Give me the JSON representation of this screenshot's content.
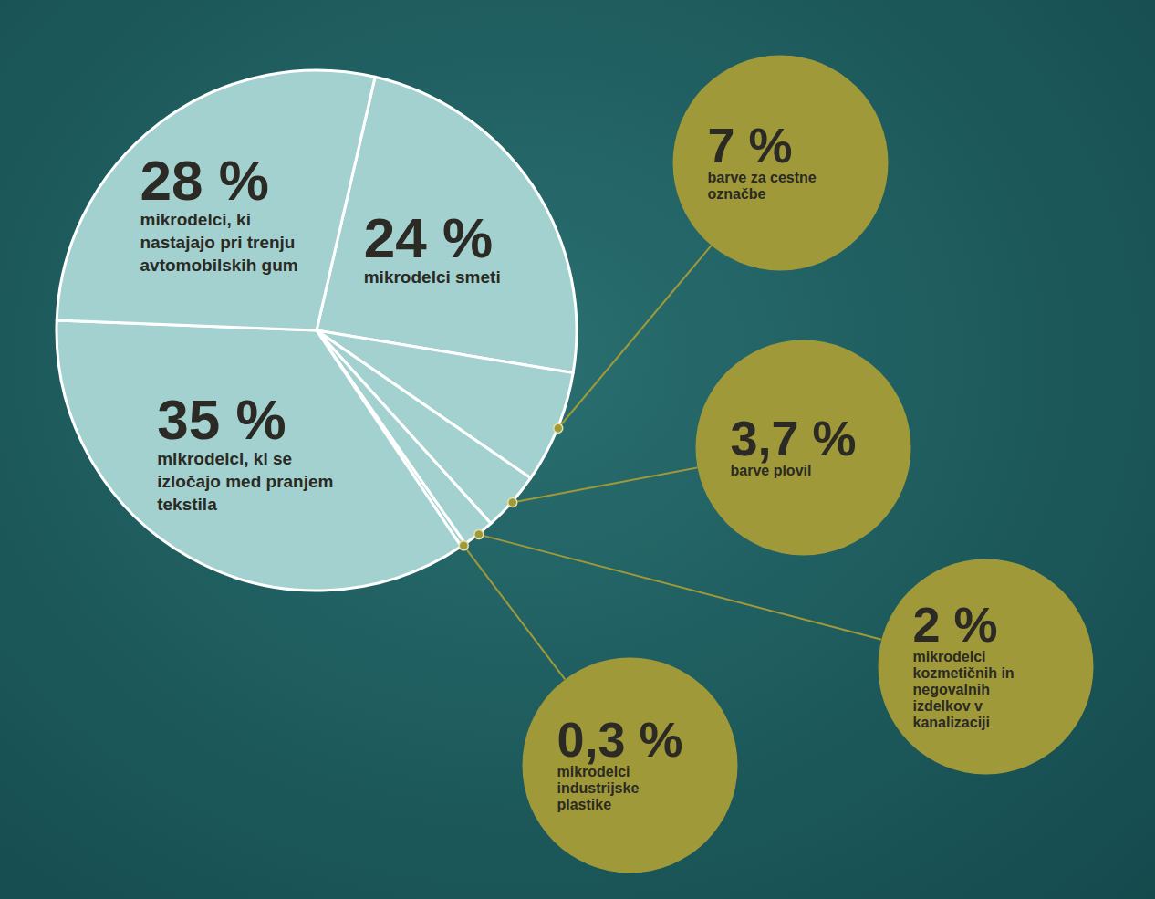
{
  "chart_data": {
    "type": "pie",
    "categories": [
      "mikrodelci smeti",
      "barve za cestne označbe",
      "barve plovil",
      "mikrodelci kozmetičnih in negovalnih izdelkov v kanalizaciji",
      "mikrodelci industrijske plastike",
      "mikrodelci, ki se izločajo med pranjem tekstila",
      "mikrodelci, ki nastajajo pri trenju avtomobilskih gum"
    ],
    "values": [
      24,
      7,
      3.7,
      2,
      0.3,
      35,
      28
    ],
    "value_labels": [
      "24 %",
      "7 %",
      "3,7 %",
      "2 %",
      "0,3 %",
      "35 %",
      "28 %"
    ],
    "colors": [
      "#a2d1d0",
      "#a2d1d0",
      "#a2d1d0",
      "#a2d1d0",
      "#a2d1d0",
      "#a2d1d0",
      "#a2d1d0"
    ],
    "data_labels": true
  }
}
